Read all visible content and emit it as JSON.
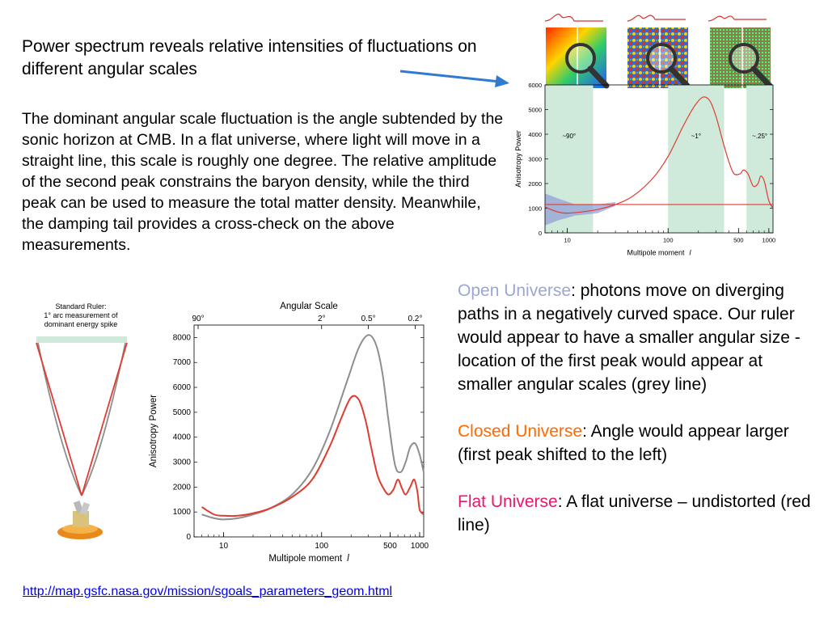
{
  "heading": "Power spectrum reveals relative intensities of fluctuations on different angular scales",
  "body": "The dominant angular scale fluctuation is the angle subtended by the sonic horizon at CMB. In a flat universe, where light will move in a straight line, this scale is roughly one degree. The relative amplitude of the second peak constrains the baryon density, while the third peak can be used to measure the total matter density. Meanwhile, the damping tail provides a cross-check on the above measurements.",
  "open": {
    "label": "Open Universe",
    "text": ":  photons move on diverging paths in a negatively curved space.  Our ruler would appear to have a smaller angular size - location of the first peak would appear at smaller angular scales (grey line)"
  },
  "closed": {
    "label": "Closed Universe",
    "text": ":  Angle would appear larger (first peak shifted to the left)"
  },
  "flat": {
    "label": "Flat Universe",
    "text": ":  A flat universe – undistorted (red line)"
  },
  "source_url": "http://map.gsfc.nasa.gov/mission/sgoals_parameters_geom.html",
  "ruler": {
    "caption": [
      "Standard Ruler:",
      "1° arc measurement of",
      "dominant energy spike"
    ]
  },
  "colors": {
    "red": "#e03c31",
    "grey": "#8e8e8e",
    "band": "#cfeadb",
    "blue": "#8e9bd6",
    "arrow": "#2f7bd0"
  },
  "chart_data": [
    {
      "type": "line",
      "xscale": "log",
      "xlabel": "Multipole moment  l",
      "ylabel": "Anisotropy Power",
      "xlim": [
        6,
        1100
      ],
      "ylim": [
        0,
        6000
      ],
      "xticks": [
        10,
        100,
        500,
        1000
      ],
      "yticks": [
        0,
        1000,
        2000,
        3000,
        4000,
        5000,
        6000
      ],
      "bands": [
        {
          "x0": 6,
          "x1": 18,
          "label": "~90°"
        },
        {
          "x0": 100,
          "x1": 360,
          "label": "~1°"
        },
        {
          "x0": 600,
          "x1": 1100,
          "label": "~.25°"
        }
      ],
      "hline": 1150,
      "series": [
        {
          "color": "red",
          "x": [
            6,
            8,
            10,
            14,
            20,
            30,
            45,
            70,
            100,
            140,
            180,
            220,
            260,
            300,
            350,
            400,
            450,
            520,
            560,
            620,
            700,
            780,
            830,
            900,
            1000,
            1100
          ],
          "y": [
            1050,
            850,
            800,
            850,
            950,
            1150,
            1500,
            2200,
            3100,
            4300,
            5100,
            5500,
            5350,
            4700,
            3700,
            2900,
            2400,
            2400,
            2550,
            2400,
            1900,
            2000,
            2300,
            2100,
            1300,
            1000
          ]
        }
      ]
    },
    {
      "type": "line",
      "xscale": "log",
      "title": "Angular Scale",
      "xlabel": "Multipole moment  l",
      "ylabel": "Anisotropy Power",
      "xlim": [
        5,
        1100
      ],
      "ylim": [
        0,
        8500
      ],
      "xticks": [
        10,
        100,
        500,
        1000
      ],
      "yticks": [
        0,
        1000,
        2000,
        3000,
        4000,
        5000,
        6000,
        7000,
        8000
      ],
      "top_ticks": [
        {
          "x": 5.5,
          "label": "90°"
        },
        {
          "x": 100,
          "label": "2°"
        },
        {
          "x": 300,
          "label": "0.5°"
        },
        {
          "x": 900,
          "label": "0.2°"
        }
      ],
      "series": [
        {
          "color": "grey",
          "x": [
            6,
            8,
            10,
            14,
            20,
            30,
            50,
            80,
            120,
            180,
            240,
            300,
            360,
            420,
            480,
            560,
            640,
            720,
            800,
            900,
            1000,
            1100
          ],
          "y": [
            900,
            750,
            700,
            750,
            900,
            1150,
            1700,
            2700,
            4200,
            6200,
            7600,
            8100,
            7700,
            6500,
            4700,
            2900,
            2600,
            3000,
            3600,
            3750,
            3300,
            2600
          ]
        },
        {
          "color": "red",
          "x": [
            6,
            8,
            10,
            14,
            20,
            30,
            50,
            80,
            120,
            160,
            200,
            240,
            280,
            320,
            370,
            420,
            480,
            540,
            600,
            660,
            720,
            800,
            880,
            950,
            1000,
            1100
          ],
          "y": [
            1200,
            900,
            850,
            850,
            950,
            1150,
            1600,
            2300,
            3600,
            4800,
            5600,
            5500,
            4700,
            3600,
            2500,
            2000,
            1700,
            1900,
            2300,
            1950,
            1700,
            2000,
            2300,
            1800,
            1100,
            900
          ]
        }
      ]
    }
  ]
}
